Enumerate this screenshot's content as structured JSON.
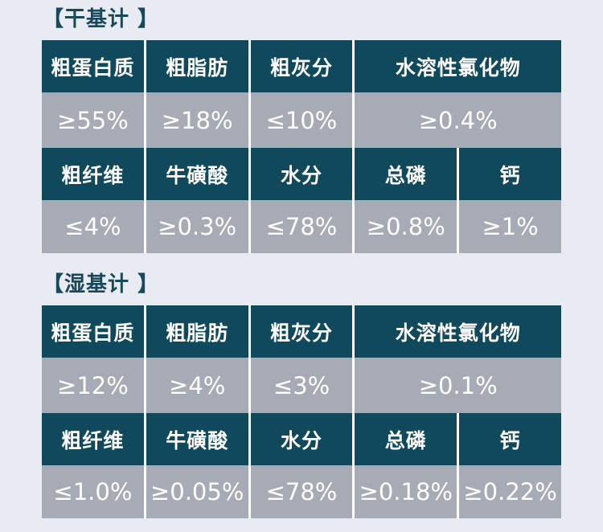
{
  "page": {
    "background": "#e9ebf2"
  },
  "colors": {
    "header_bg": "#11495c",
    "value_bg": "#a7abb5",
    "title_text": "#17495a",
    "cell_text": "#ffffff",
    "separator": "#ffffff"
  },
  "sections": [
    {
      "id": "dry-basis",
      "title": "【干基计 】",
      "rows": [
        {
          "type": "header",
          "cells": [
            {
              "name": "crude-protein",
              "label": "粗蛋白质",
              "span": 1
            },
            {
              "name": "crude-fat",
              "label": "粗脂肪",
              "span": 1
            },
            {
              "name": "crude-ash",
              "label": "粗灰分",
              "span": 1
            },
            {
              "name": "water-soluble-chlorides",
              "label": "水溶性氯化物",
              "span": 2
            }
          ]
        },
        {
          "type": "value",
          "cells": [
            {
              "name": "crude-protein-value",
              "label": "≥55%",
              "span": 1
            },
            {
              "name": "crude-fat-value",
              "label": "≥18%",
              "span": 1
            },
            {
              "name": "crude-ash-value",
              "label": "≤10%",
              "span": 1
            },
            {
              "name": "water-soluble-chlorides-value",
              "label": "≥0.4%",
              "span": 2
            }
          ]
        },
        {
          "type": "header",
          "cells": [
            {
              "name": "crude-fiber",
              "label": "粗纤维",
              "span": 1
            },
            {
              "name": "taurine",
              "label": "牛磺酸",
              "span": 1
            },
            {
              "name": "moisture",
              "label": "水分",
              "span": 1
            },
            {
              "name": "total-phosphorus",
              "label": "总磷",
              "span": 1
            },
            {
              "name": "calcium",
              "label": "钙",
              "span": 1
            }
          ]
        },
        {
          "type": "value",
          "cells": [
            {
              "name": "crude-fiber-value",
              "label": "≤4%",
              "span": 1
            },
            {
              "name": "taurine-value",
              "label": "≥0.3%",
              "span": 1
            },
            {
              "name": "moisture-value",
              "label": "≤78%",
              "span": 1
            },
            {
              "name": "total-phosphorus-value",
              "label": "≥0.8%",
              "span": 1
            },
            {
              "name": "calcium-value",
              "label": "≥1%",
              "span": 1
            }
          ]
        }
      ]
    },
    {
      "id": "wet-basis",
      "title": "【湿基计 】",
      "rows": [
        {
          "type": "header",
          "cells": [
            {
              "name": "crude-protein",
              "label": "粗蛋白质",
              "span": 1
            },
            {
              "name": "crude-fat",
              "label": "粗脂肪",
              "span": 1
            },
            {
              "name": "crude-ash",
              "label": "粗灰分",
              "span": 1
            },
            {
              "name": "water-soluble-chlorides",
              "label": "水溶性氯化物",
              "span": 2
            }
          ]
        },
        {
          "type": "value",
          "cells": [
            {
              "name": "crude-protein-value",
              "label": "≥12%",
              "span": 1
            },
            {
              "name": "crude-fat-value",
              "label": "≥4%",
              "span": 1
            },
            {
              "name": "crude-ash-value",
              "label": "≤3%",
              "span": 1
            },
            {
              "name": "water-soluble-chlorides-value",
              "label": "≥0.1%",
              "span": 2
            }
          ]
        },
        {
          "type": "header",
          "cells": [
            {
              "name": "crude-fiber",
              "label": "粗纤维",
              "span": 1
            },
            {
              "name": "taurine",
              "label": "牛磺酸",
              "span": 1
            },
            {
              "name": "moisture",
              "label": "水分",
              "span": 1
            },
            {
              "name": "total-phosphorus",
              "label": "总磷",
              "span": 1
            },
            {
              "name": "calcium",
              "label": "钙",
              "span": 1
            }
          ]
        },
        {
          "type": "value",
          "cells": [
            {
              "name": "crude-fiber-value",
              "label": "≤1.0%",
              "span": 1
            },
            {
              "name": "taurine-value",
              "label": "≥0.05%",
              "span": 1
            },
            {
              "name": "moisture-value",
              "label": "≤78%",
              "span": 1
            },
            {
              "name": "total-phosphorus-value",
              "label": "≥0.18%",
              "span": 1
            },
            {
              "name": "calcium-value",
              "label": "≥0.22%",
              "span": 1
            }
          ]
        }
      ]
    }
  ]
}
